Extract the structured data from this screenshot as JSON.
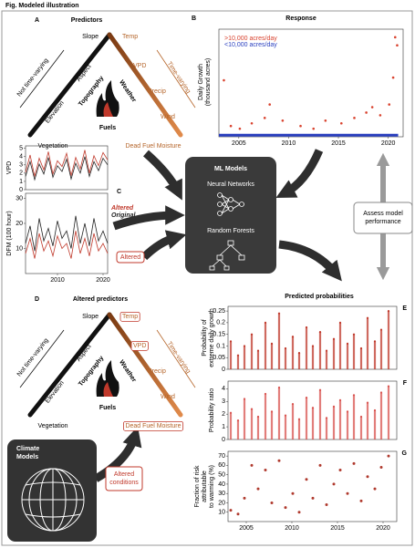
{
  "figure_title": "Fig. Modeled illustration",
  "panel_a": {
    "letter": "A",
    "title": "Predictors",
    "apex_left": "Slope",
    "apex_right": "Temp",
    "left_outer": "Not time-varying",
    "left_inner": [
      "Aspect",
      "Elevation"
    ],
    "left_group": "Topography",
    "right_outer": "Time-varying",
    "right_inner": [
      "VPD",
      "Precip",
      "Wind"
    ],
    "right_group": "Weather",
    "bottom_group": "Fuels",
    "bottom_left": "Vegetation",
    "bottom_right": "Dead Fuel Moisture"
  },
  "panel_b": {
    "letter": "B",
    "title": "Response",
    "ylabel": [
      "Daily Growth",
      "(thousand acres)"
    ],
    "xlim": [
      2003,
      2021.5
    ],
    "xticks": [
      2005,
      2010,
      2015,
      2020
    ],
    "ylim": [
      0,
      200
    ],
    "series": [
      {
        "name": ">10,000 acres/day",
        "color": "#d9432f",
        "x": [
          2003.5,
          2004.2,
          2005.1,
          2006.3,
          2007.6,
          2008.1,
          2009.4,
          2011.2,
          2012.5,
          2013.7,
          2015.3,
          2016.6,
          2017.8,
          2018.4,
          2019.2,
          2020.1,
          2020.5,
          2020.7,
          2020.9
        ],
        "values": [
          105,
          20,
          15,
          25,
          35,
          60,
          30,
          20,
          15,
          30,
          25,
          35,
          45,
          55,
          40,
          60,
          110,
          185,
          170
        ]
      },
      {
        "name": "<10,000 acres/day",
        "color": "#2a3fbf",
        "x": [
          2003,
          2021
        ],
        "values": [
          3,
          3
        ]
      }
    ]
  },
  "panel_c": {
    "letter": "C",
    "x": [
      2003,
      2004,
      2005,
      2006,
      2007,
      2008,
      2009,
      2010,
      2011,
      2012,
      2013,
      2014,
      2015,
      2016,
      2017,
      2018,
      2019,
      2020,
      2021
    ],
    "xlim": [
      2003,
      2021
    ],
    "xticks": [
      2010,
      2020
    ],
    "vpd": {
      "ylabel": "VPD",
      "ylim": [
        0,
        5.3
      ],
      "yticks": [
        0,
        1,
        2,
        3,
        4,
        5
      ],
      "series": [
        {
          "name": "Altered",
          "color": "#c0392b",
          "values": [
            2.1,
            4.2,
            1.6,
            3.8,
            2.4,
            4.6,
            1.9,
            3.5,
            2.8,
            4.4,
            1.7,
            3.9,
            2.5,
            4.8,
            2.0,
            4.1,
            2.9,
            4.5,
            3.6
          ]
        },
        {
          "name": "Original",
          "color": "#222222",
          "values": [
            1.6,
            3.4,
            1.2,
            3.1,
            1.9,
            3.9,
            1.5,
            2.9,
            2.2,
            3.7,
            1.3,
            3.2,
            2.0,
            4.0,
            1.6,
            3.4,
            2.3,
            3.8,
            3.0
          ]
        }
      ]
    },
    "dfm": {
      "ylabel": "DFM (100 hour)",
      "ylim": [
        0,
        32
      ],
      "yticks": [
        10,
        20,
        30
      ],
      "series": [
        {
          "color": "#c0392b",
          "values": [
            8,
            14,
            6,
            16,
            9,
            13,
            7,
            15,
            10,
            12,
            6,
            17,
            8,
            14,
            7,
            16,
            9,
            12,
            8
          ]
        },
        {
          "color": "#222222",
          "values": [
            12,
            19,
            9,
            22,
            13,
            18,
            11,
            21,
            14,
            17,
            10,
            23,
            12,
            20,
            11,
            22,
            13,
            17,
            12
          ]
        }
      ]
    }
  },
  "ml": {
    "title": "ML Models",
    "models": [
      "Neural Networks",
      "Random Forests"
    ],
    "input_label": "Altered",
    "assess": [
      "Assess model",
      "performance"
    ]
  },
  "panel_d": {
    "letter": "D",
    "title": "Altered predictors",
    "apex_left": "Slope",
    "apex_right": "Temp",
    "left_outer": "Not time-varying",
    "left_inner": [
      "Aspect",
      "Elevation"
    ],
    "left_group": "Topography",
    "right_outer": "Time-varying",
    "right_inner": [
      "VPD",
      "Precip",
      "Wind"
    ],
    "right_group": "Weather",
    "bottom_group": "Fuels",
    "bottom_left": "Vegetation",
    "bottom_right": "Dead Fuel Moisture"
  },
  "climate": {
    "title": [
      "Climate",
      "Models"
    ],
    "output": [
      "Altered",
      "conditions"
    ]
  },
  "panel_e": {
    "letter": "E",
    "title": "Predicted probabilities",
    "ylabel": [
      "Probability of",
      "extreme daily growth"
    ],
    "xlim": [
      2003,
      2021.5
    ],
    "ylim": [
      0,
      0.27
    ],
    "yticks": [
      0,
      0.05,
      0.1,
      0.15,
      0.2,
      0.25
    ],
    "color": "#c0392b",
    "x": [
      2003.3,
      2004.1,
      2004.8,
      2005.6,
      2006.3,
      2007.1,
      2007.8,
      2008.6,
      2009.3,
      2010.1,
      2010.8,
      2011.6,
      2012.3,
      2013.1,
      2013.8,
      2014.6,
      2015.3,
      2016.1,
      2016.8,
      2017.6,
      2018.3,
      2019.1,
      2019.8,
      2020.6
    ],
    "values": [
      0.12,
      0.06,
      0.1,
      0.15,
      0.08,
      0.2,
      0.11,
      0.24,
      0.09,
      0.14,
      0.07,
      0.18,
      0.1,
      0.16,
      0.08,
      0.13,
      0.2,
      0.11,
      0.15,
      0.09,
      0.22,
      0.12,
      0.17,
      0.25
    ]
  },
  "panel_f": {
    "letter": "F",
    "ylabel": [
      "Probability ratio"
    ],
    "xlim": [
      2003,
      2021.5
    ],
    "ylim": [
      0,
      4.6
    ],
    "yticks": [
      0,
      1,
      2,
      3,
      4
    ],
    "color": "#d9534f",
    "x": [
      2003.3,
      2004.1,
      2004.8,
      2005.6,
      2006.3,
      2007.1,
      2007.8,
      2008.6,
      2009.3,
      2010.1,
      2010.8,
      2011.6,
      2012.3,
      2013.1,
      2013.8,
      2014.6,
      2015.3,
      2016.1,
      2016.8,
      2017.6,
      2018.3,
      2019.1,
      2019.8,
      2020.6
    ],
    "values": [
      2.1,
      1.5,
      3.2,
      2.4,
      1.8,
      3.6,
      2.2,
      4.1,
      1.9,
      2.8,
      1.6,
      3.3,
      2.5,
      3.9,
      1.7,
      2.6,
      3.1,
      2.2,
      3.5,
      1.8,
      2.9,
      2.3,
      3.7,
      4.2
    ]
  },
  "panel_g": {
    "letter": "G",
    "ylabel": [
      "Fraction of risk",
      "attributable",
      "to warming (%)"
    ],
    "xlim": [
      2003,
      2021.5
    ],
    "xticks": [
      2005,
      2010,
      2015,
      2020
    ],
    "ylim": [
      0,
      75
    ],
    "yticks": [
      10,
      20,
      30,
      40,
      50,
      60,
      70
    ],
    "color": "#b03a2e",
    "x": [
      2003.3,
      2004.1,
      2004.8,
      2005.6,
      2006.3,
      2007.1,
      2007.8,
      2008.6,
      2009.3,
      2010.1,
      2010.8,
      2011.6,
      2012.3,
      2013.1,
      2013.8,
      2014.6,
      2015.3,
      2016.1,
      2016.8,
      2017.6,
      2018.3,
      2019.1,
      2019.8,
      2020.6
    ],
    "values": [
      12,
      8,
      25,
      60,
      35,
      55,
      20,
      65,
      15,
      30,
      10,
      45,
      25,
      60,
      18,
      40,
      55,
      30,
      62,
      22,
      48,
      35,
      58,
      70
    ]
  }
}
